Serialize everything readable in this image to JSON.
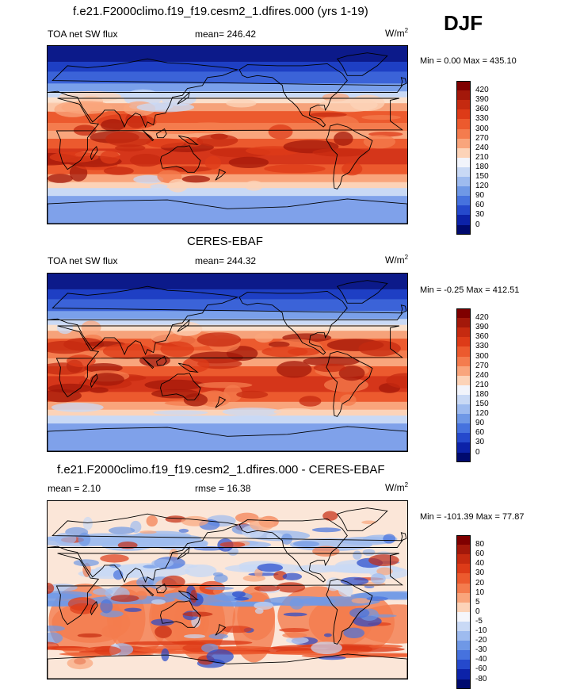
{
  "season_label": "DJF",
  "panels": [
    {
      "title": "f.e21.F2000climo.f19_f19.cesm2_1.dfires.000 (yrs 1-19)",
      "variable": "TOA net SW flux",
      "mean_text": "mean= 246.42",
      "units": "W/m",
      "units_sup": "2",
      "minmax": "Min =   0.00 Max = 435.10",
      "colorbar": {
        "labels": [
          "420",
          "390",
          "360",
          "330",
          "300",
          "270",
          "240",
          "210",
          "180",
          "150",
          "120",
          "90",
          "60",
          "30",
          "0"
        ],
        "colors": [
          "#7f0000",
          "#a3180a",
          "#c52a10",
          "#dd3b18",
          "#ec5a2e",
          "#f47c4e",
          "#f9a57c",
          "#fcd3b8",
          "#f2f4fb",
          "#c9d9f5",
          "#9ebbef",
          "#6f98e6",
          "#4672de",
          "#2549cc",
          "#0c22a8",
          "#000a6e"
        ]
      },
      "map_mode": "abs"
    },
    {
      "title": "CERES-EBAF",
      "variable": "TOA net SW flux",
      "mean_text": "mean= 244.32",
      "units": "W/m",
      "units_sup": "2",
      "minmax": "Min =  -0.25 Max = 412.51",
      "colorbar": {
        "labels": [
          "420",
          "390",
          "360",
          "330",
          "300",
          "270",
          "240",
          "210",
          "180",
          "150",
          "120",
          "90",
          "60",
          "30",
          "0"
        ],
        "colors": [
          "#7f0000",
          "#a3180a",
          "#c52a10",
          "#dd3b18",
          "#ec5a2e",
          "#f47c4e",
          "#f9a57c",
          "#fcd3b8",
          "#f2f4fb",
          "#c9d9f5",
          "#9ebbef",
          "#6f98e6",
          "#4672de",
          "#2549cc",
          "#0c22a8",
          "#000a6e"
        ]
      },
      "map_mode": "abs"
    },
    {
      "title": "f.e21.F2000climo.f19_f19.cesm2_1.dfires.000 - CERES-EBAF",
      "variable": "mean =   2.10",
      "mean_text": "rmse =  16.38",
      "units": "W/m",
      "units_sup": "2",
      "minmax": "Min = -101.39 Max =  77.87",
      "colorbar": {
        "labels": [
          "80",
          "60",
          "40",
          "30",
          "20",
          "10",
          "5",
          "0",
          "-5",
          "-10",
          "-20",
          "-30",
          "-40",
          "-60",
          "-80"
        ],
        "colors": [
          "#7f0000",
          "#a3180a",
          "#c52a10",
          "#dd3b18",
          "#ec5a2e",
          "#f47c4e",
          "#f9a57c",
          "#fcd3b8",
          "#f5f6fb",
          "#c9d9f5",
          "#9ebbef",
          "#6f98e6",
          "#4672de",
          "#2549cc",
          "#0c22a8",
          "#000a6e"
        ]
      },
      "map_mode": "diff"
    }
  ]
}
